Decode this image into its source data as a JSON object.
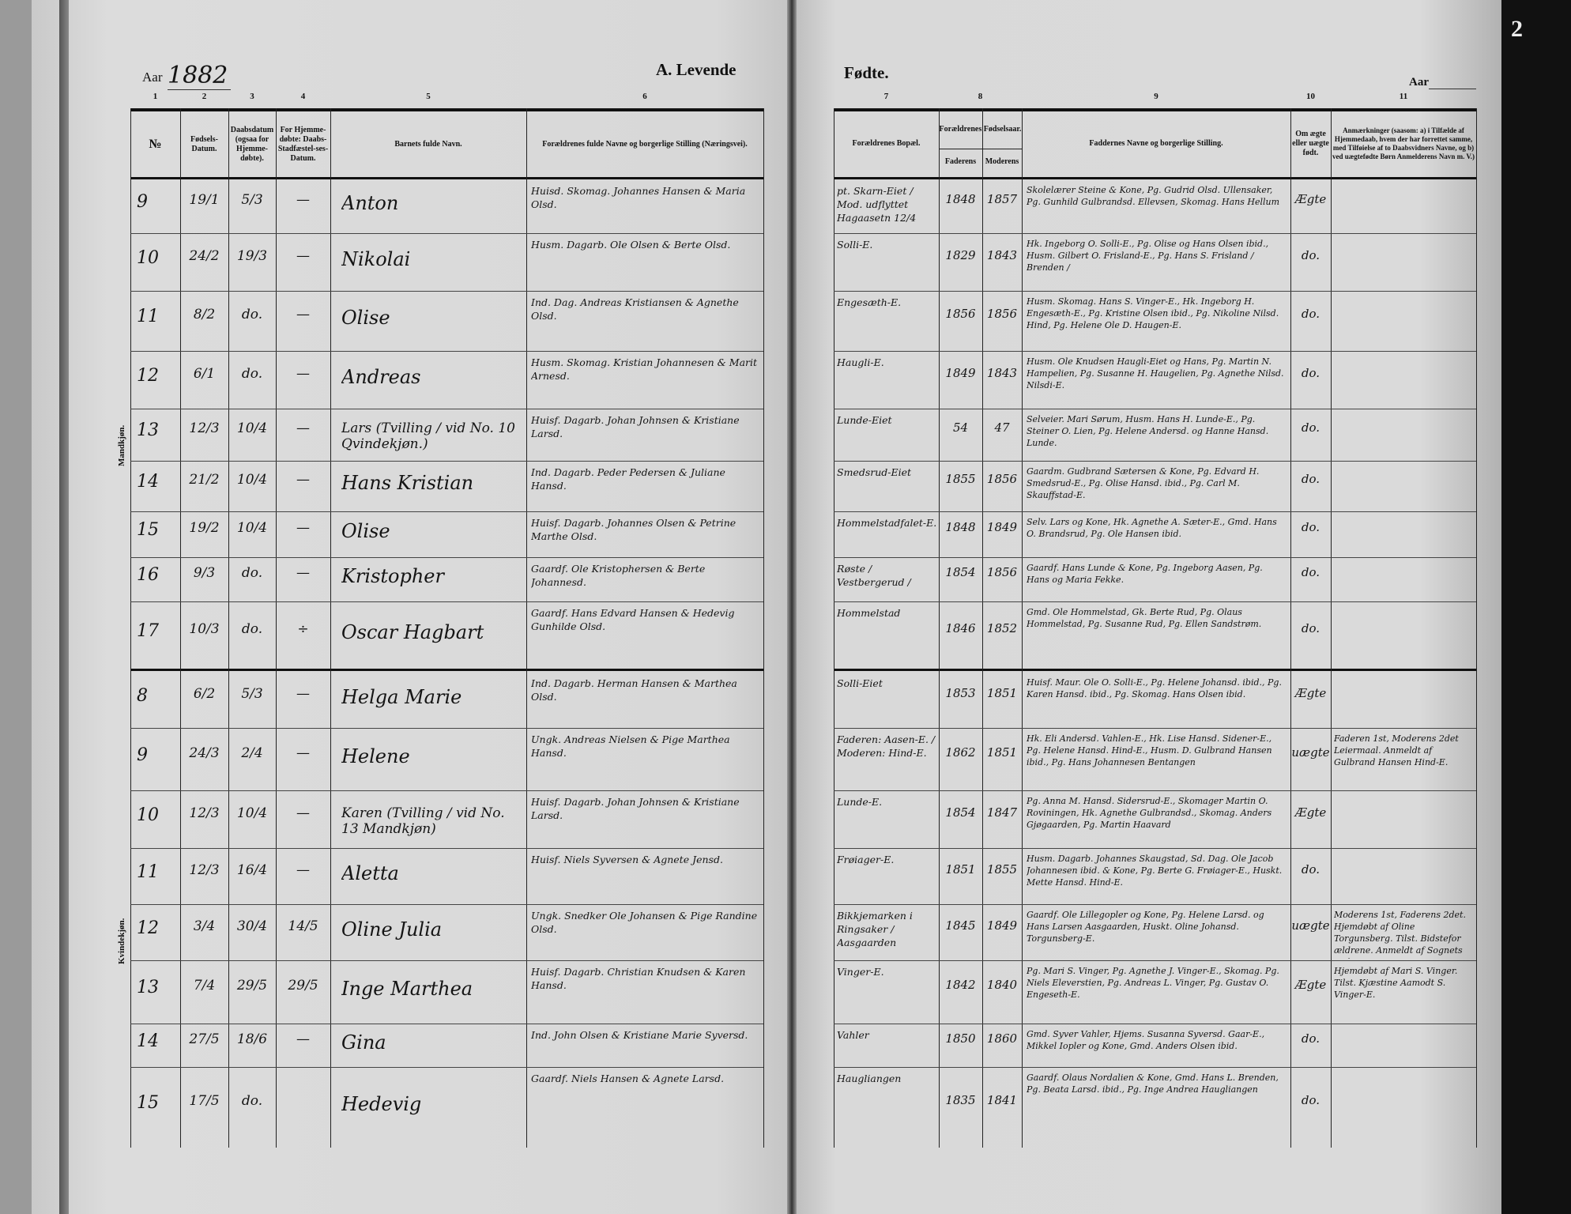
{
  "left_page": {
    "year_label": "Aar",
    "year": "1882",
    "title": "A. Levende",
    "column_numbers": [
      "1",
      "2",
      "3",
      "4",
      "5",
      "6"
    ],
    "headers": {
      "nr": "№",
      "birth_date": "Fødsels-Datum.",
      "baptism_date": "Daabsdatum (ogsaa for Hjemme-døbte).",
      "confirmation_date": "For Hjemme-døbte: Daabs-Stadfæstel-ses-Datum.",
      "child_name": "Barnets fulde Navn.",
      "parents": "Forældrenes fulde Navne og borgerlige Stilling (Næringsvei)."
    },
    "section_male": "Mandkjøn.",
    "section_female": "Kvindekjøn."
  },
  "right_page": {
    "title": "Fødte.",
    "year_label": "Aar",
    "page_number": "2",
    "column_numbers": [
      "7",
      "8",
      "9",
      "10",
      "11"
    ],
    "headers": {
      "residence": "Forældrenes Bopæl.",
      "birth_years": "Forældrenes Fødselsaar.",
      "father": "Faderens",
      "mother": "Moderens",
      "sponsors": "Faddernes Navne og borgerlige Stilling.",
      "legitimacy": "Om ægte eller uægte født.",
      "remarks": "Anmærkninger (saasom: a) i Tilfælde af Hjemmedaab, hvem der har forrettet samme, med Tilføielse af to Daabsvidners Navne, og b) ved uægtefødte Børn Anmelderens Navn m. V.)"
    }
  },
  "male_rows": [
    {
      "nr": "9",
      "birth": "19/1",
      "baptism": "5/3",
      "confirm": "—",
      "name": "Anton",
      "parents": "Huisd. Skomag. Johannes Hansen & Maria Olsd.",
      "residence": "pt. Skarn-Eiet / Mod. udflyttet Hagaasetn 12/4",
      "father_year": "1848",
      "mother_year": "1857",
      "sponsors": "Skolelærer Steine & Kone, Pg. Gudrid Olsd. Ullensaker, Pg. Gunhild Gulbrandsd. Ellevsen, Skomag. Hans Hellum",
      "legitimacy": "Ægte",
      "remarks": ""
    },
    {
      "nr": "10",
      "birth": "24/2",
      "baptism": "19/3",
      "confirm": "—",
      "name": "Nikolai",
      "parents": "Husm. Dagarb. Ole Olsen & Berte Olsd.",
      "residence": "Solli-E.",
      "father_year": "1829",
      "mother_year": "1843",
      "sponsors": "Hk. Ingeborg O. Solli-E., Pg. Olise og Hans Olsen ibid., Husm. Gilbert O. Frisland-E., Pg. Hans S. Frisland / Brenden /",
      "legitimacy": "do.",
      "remarks": ""
    },
    {
      "nr": "11",
      "birth": "8/2",
      "baptism": "do.",
      "confirm": "—",
      "name": "Olise",
      "parents": "Ind. Dag. Andreas Kristiansen & Agnethe Olsd.",
      "residence": "Engesæth-E.",
      "father_year": "1856",
      "mother_year": "1856",
      "sponsors": "Husm. Skomag. Hans S. Vinger-E., Hk. Ingeborg H. Engesæth-E., Pg. Kristine Olsen ibid., Pg. Nikoline Nilsd. Hind, Pg. Helene Ole D. Haugen-E.",
      "legitimacy": "do.",
      "remarks": ""
    },
    {
      "nr": "12",
      "birth": "6/1",
      "baptism": "do.",
      "confirm": "—",
      "name": "Andreas",
      "parents": "Husm. Skomag. Kristian Johannesen & Marit Arnesd.",
      "residence": "Haugli-E.",
      "father_year": "1849",
      "mother_year": "1843",
      "sponsors": "Husm. Ole Knudsen Haugli-Eiet og Hans, Pg. Martin N. Hampelien, Pg. Susanne H. Haugelien, Pg. Agnethe Nilsd. Nilsdi-E.",
      "legitimacy": "do.",
      "remarks": ""
    },
    {
      "nr": "13",
      "birth": "12/3",
      "baptism": "10/4",
      "confirm": "—",
      "name": "Lars (Tvilling / vid No. 10 Qvindekjøn.)",
      "parents": "Huisf. Dagarb. Johan Johnsen & Kristiane Larsd.",
      "residence": "Lunde-Eiet",
      "father_year": "54",
      "mother_year": "47",
      "sponsors": "Selveier. Mari Sørum, Husm. Hans H. Lunde-E., Pg. Steiner O. Lien, Pg. Helene Andersd. og Hanne Hansd. Lunde.",
      "legitimacy": "do.",
      "remarks": ""
    },
    {
      "nr": "14",
      "birth": "21/2",
      "baptism": "10/4",
      "confirm": "—",
      "name": "Hans Kristian",
      "parents": "Ind. Dagarb. Peder Pedersen & Juliane Hansd.",
      "residence": "Smedsrud-Eiet",
      "father_year": "1855",
      "mother_year": "1856",
      "sponsors": "Gaardm. Gudbrand Sætersen & Kone, Pg. Edvard H. Smedsrud-E., Pg. Olise Hansd. ibid., Pg. Carl M. Skauffstad-E.",
      "legitimacy": "do.",
      "remarks": ""
    },
    {
      "nr": "15",
      "birth": "19/2",
      "baptism": "10/4",
      "confirm": "—",
      "name": "Olise",
      "parents": "Huisf. Dagarb. Johannes Olsen & Petrine Marthe Olsd.",
      "residence": "Hommelstadfalet-E.",
      "father_year": "1848",
      "mother_year": "1849",
      "sponsors": "Selv. Lars og Kone, Hk. Agnethe A. Sæter-E., Gmd. Hans O. Brandsrud, Pg. Ole Hansen ibid.",
      "legitimacy": "do.",
      "remarks": ""
    },
    {
      "nr": "16",
      "birth": "9/3",
      "baptism": "do.",
      "confirm": "—",
      "name": "Kristopher",
      "parents": "Gaardf. Ole Kristophersen & Berte Johannesd.",
      "residence": "Røste / Vestbergerud /",
      "father_year": "1854",
      "mother_year": "1856",
      "sponsors": "Gaardf. Hans Lunde & Kone, Pg. Ingeborg Aasen, Pg. Hans og Maria Fekke.",
      "legitimacy": "do.",
      "remarks": ""
    },
    {
      "nr": "17",
      "birth": "10/3",
      "baptism": "do.",
      "confirm": "÷",
      "name": "Oscar Hagbart",
      "parents": "Gaardf. Hans Edvard Hansen & Hedevig Gunhilde Olsd.",
      "residence": "Hommelstad",
      "father_year": "1846",
      "mother_year": "1852",
      "sponsors": "Gmd. Ole Hommelstad, Gk. Berte Rud, Pg. Olaus Hommelstad, Pg. Susanne Rud, Pg. Ellen Sandstrøm.",
      "legitimacy": "do.",
      "remarks": ""
    }
  ],
  "female_rows": [
    {
      "nr": "8",
      "birth": "6/2",
      "baptism": "5/3",
      "confirm": "—",
      "name": "Helga Marie",
      "parents": "Ind. Dagarb. Herman Hansen & Marthea Olsd.",
      "residence": "Solli-Eiet",
      "father_year": "1853",
      "mother_year": "1851",
      "sponsors": "Huisf. Maur. Ole O. Solli-E., Pg. Helene Johansd. ibid., Pg. Karen Hansd. ibid., Pg. Skomag. Hans Olsen ibid.",
      "legitimacy": "Ægte",
      "remarks": ""
    },
    {
      "nr": "9",
      "birth": "24/3",
      "baptism": "2/4",
      "confirm": "—",
      "name": "Helene",
      "parents": "Ungk. Andreas Nielsen & Pige Marthea Hansd.",
      "residence": "Faderen: Aasen-E. / Moderen: Hind-E.",
      "father_year": "1862",
      "mother_year": "1851",
      "sponsors": "Hk. Eli Andersd. Vahlen-E., Hk. Lise Hansd. Sidener-E., Pg. Helene Hansd. Hind-E., Husm. D. Gulbrand Hansen ibid., Pg. Hans Johannesen Bentangen",
      "legitimacy": "uægte",
      "remarks": "Faderen 1st, Moderens 2det Leiermaal. Anmeldt af Gulbrand Hansen Hind-E."
    },
    {
      "nr": "10",
      "birth": "12/3",
      "baptism": "10/4",
      "confirm": "—",
      "name": "Karen (Tvilling / vid No. 13 Mandkjøn)",
      "parents": "Huisf. Dagarb. Johan Johnsen & Kristiane Larsd.",
      "residence": "Lunde-E.",
      "father_year": "1854",
      "mother_year": "1847",
      "sponsors": "Pg. Anna M. Hansd. Sidersrud-E., Skomager Martin O. Roviningen, Hk. Agnethe Gulbrandsd., Skomag. Anders Gjøgaarden, Pg. Martin Haavard",
      "legitimacy": "Ægte",
      "remarks": ""
    },
    {
      "nr": "11",
      "birth": "12/3",
      "baptism": "16/4",
      "confirm": "—",
      "name": "Aletta",
      "parents": "Huisf. Niels Syversen & Agnete Jensd.",
      "residence": "Frøiager-E.",
      "father_year": "1851",
      "mother_year": "1855",
      "sponsors": "Husm. Dagarb. Johannes Skaugstad, Sd. Dag. Ole Jacob Johannesen ibid. & Kone, Pg. Berte G. Frøiager-E., Huskt. Mette Hansd. Hind-E.",
      "legitimacy": "do.",
      "remarks": ""
    },
    {
      "nr": "12",
      "birth": "3/4",
      "baptism": "30/4",
      "confirm": "14/5",
      "name": "Oline Julia",
      "parents": "Ungk. Snedker Ole Johansen & Pige Randine Olsd.",
      "residence": "Bikkjemarken i Ringsaker / Aasgaarden",
      "father_year": "1845",
      "mother_year": "1849",
      "sponsors": "Gaardf. Ole Lillegopler og Kone, Pg. Helene Larsd. og Hans Larsen Aasgaarden, Huskt. Oline Johansd. Torgunsberg-E.",
      "legitimacy": "uægte",
      "remarks": "Moderens 1st, Faderens 2det. Hjemdøbt af Oline Torgunsberg. Tilst. Bidstefor ældrene. Anmeldt af Sognets Fader"
    },
    {
      "nr": "13",
      "birth": "7/4",
      "baptism": "29/5",
      "confirm": "29/5",
      "name": "Inge Marthea",
      "parents": "Huisf. Dagarb. Christian Knudsen & Karen Hansd.",
      "residence": "Vinger-E.",
      "father_year": "1842",
      "mother_year": "1840",
      "sponsors": "Pg. Mari S. Vinger, Pg. Agnethe J. Vinger-E., Skomag. Pg. Niels Eleverstien, Pg. Andreas L. Vinger, Pg. Gustav O. Engeseth-E.",
      "legitimacy": "Ægte",
      "remarks": "Hjemdøbt af Mari S. Vinger. Tilst. Kjæstine Aamodt S. Vinger-E."
    },
    {
      "nr": "14",
      "birth": "27/5",
      "baptism": "18/6",
      "confirm": "—",
      "name": "Gina",
      "parents": "Ind. John Olsen & Kristiane Marie Syversd.",
      "residence": "Vahler",
      "father_year": "1850",
      "mother_year": "1860",
      "sponsors": "Gmd. Syver Vahler, Hjems. Susanna Syversd. Gaar-E., Mikkel Iopler og Kone, Gmd. Anders Olsen ibid.",
      "legitimacy": "do.",
      "remarks": ""
    },
    {
      "nr": "15",
      "birth": "17/5",
      "baptism": "do.",
      "confirm": "",
      "name": "Hedevig",
      "parents": "Gaardf. Niels Hansen & Agnete Larsd.",
      "residence": "Haugliangen",
      "father_year": "1835",
      "mother_year": "1841",
      "sponsors": "Gaardf. Olaus Nordalien & Kone, Gmd. Hans L. Brenden, Pg. Beata Larsd. ibid., Pg. Inge Andrea Haugliangen",
      "legitimacy": "do.",
      "remarks": ""
    }
  ]
}
